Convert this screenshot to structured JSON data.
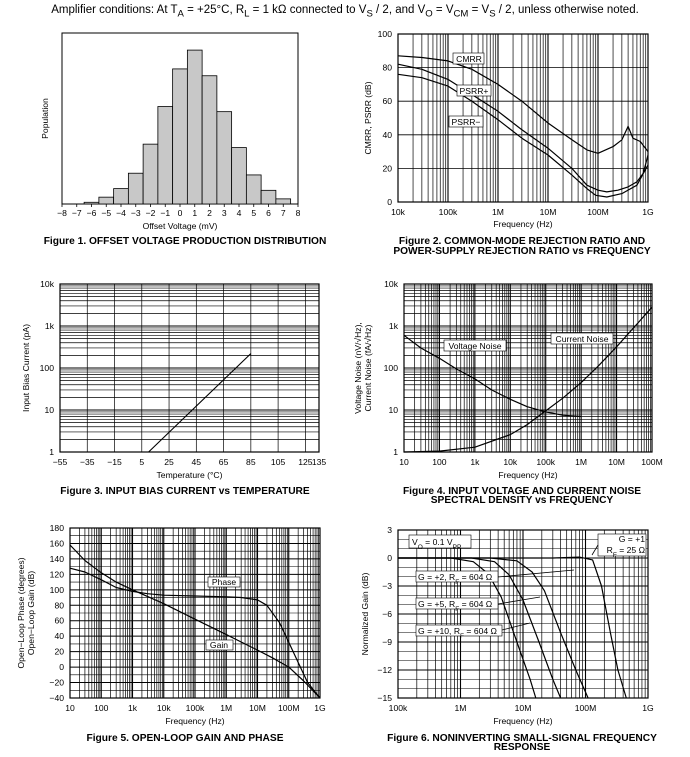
{
  "header": {
    "prefix": "Amplifier conditions: At T",
    "t_sub": "A",
    "part1": " = +25°C, R",
    "r_sub": "L",
    "part2": " = 1 kΩ connected to V",
    "vs_sub1": "S",
    "part3": " / 2, and V",
    "vo_sub": "O",
    "part4": " = V",
    "vcm_sub": "CM",
    "part5": " = V",
    "vs_sub2": "S",
    "part6": " / 2, unless otherwise noted."
  },
  "chart_data": [
    {
      "id": "fig1",
      "type": "bar",
      "title": "Figure 1. OFFSET VOLTAGE PRODUCTION DISTRIBUTION",
      "xlabel": "Offset Voltage (mV)",
      "ylabel": "Population",
      "x_ticks": [
        "−8",
        "−7",
        "−6",
        "−5",
        "−4",
        "−3",
        "−2",
        "−1",
        "0",
        "1",
        "2",
        "3",
        "4",
        "5",
        "6",
        "7",
        "8"
      ],
      "xlim": [
        -8,
        8
      ],
      "ylim": [
        0,
        100
      ],
      "bins": [
        {
          "x0": -6.5,
          "x1": -5.5,
          "value": 1
        },
        {
          "x0": -5.5,
          "x1": -4.5,
          "value": 4
        },
        {
          "x0": -4.5,
          "x1": -3.5,
          "value": 9
        },
        {
          "x0": -3.5,
          "x1": -2.5,
          "value": 18
        },
        {
          "x0": -2.5,
          "x1": -1.5,
          "value": 35
        },
        {
          "x0": -1.5,
          "x1": -0.5,
          "value": 57
        },
        {
          "x0": -0.5,
          "x1": 0.5,
          "value": 79
        },
        {
          "x0": 0.5,
          "x1": 1.5,
          "value": 90
        },
        {
          "x0": 1.5,
          "x1": 2.5,
          "value": 75
        },
        {
          "x0": 2.5,
          "x1": 3.5,
          "value": 54
        },
        {
          "x0": 3.5,
          "x1": 4.5,
          "value": 33
        },
        {
          "x0": 4.5,
          "x1": 5.5,
          "value": 17
        },
        {
          "x0": 5.5,
          "x1": 6.5,
          "value": 8
        },
        {
          "x0": 6.5,
          "x1": 7.5,
          "value": 3
        }
      ]
    },
    {
      "id": "fig2",
      "type": "line",
      "title_line1": "Figure 2. COMMON-MODE REJECTION RATIO AND",
      "title_line2": "POWER-SUPPLY REJECTION RATIO vs FREQUENCY",
      "xlabel": "Frequency (Hz)",
      "ylabel": "CMRR, PSRR (dB)",
      "x_scale": "log",
      "xlim": [
        10000,
        1000000000
      ],
      "ylim": [
        0,
        100
      ],
      "x_tick_values": [
        10000,
        100000,
        1000000,
        10000000,
        100000000,
        1000000000
      ],
      "x_tick_labels": [
        "10k",
        "100k",
        "1M",
        "10M",
        "100M",
        "1G"
      ],
      "y_ticks": [
        0,
        20,
        40,
        60,
        80,
        100
      ],
      "series": [
        {
          "name": "CMRR",
          "points": [
            [
              10000,
              87
            ],
            [
              30000,
              86
            ],
            [
              100000,
              84
            ],
            [
              300000,
              79
            ],
            [
              1000000,
              70
            ],
            [
              3000000,
              60
            ],
            [
              10000000,
              47
            ],
            [
              30000000,
              37
            ],
            [
              60000000,
              31
            ],
            [
              100000000,
              29
            ],
            [
              200000000,
              33
            ],
            [
              300000000,
              37
            ],
            [
              400000000,
              45
            ],
            [
              500000000,
              38
            ],
            [
              700000000,
              36
            ],
            [
              1000000000,
              30
            ]
          ]
        },
        {
          "name": "PSRR+",
          "points": [
            [
              10000,
              82
            ],
            [
              30000,
              79
            ],
            [
              100000,
              73
            ],
            [
              300000,
              64
            ],
            [
              1000000,
              54
            ],
            [
              3000000,
              43
            ],
            [
              10000000,
              32
            ],
            [
              30000000,
              20
            ],
            [
              60000000,
              10
            ],
            [
              100000000,
              7
            ],
            [
              150000000,
              6
            ],
            [
              250000000,
              7
            ],
            [
              400000000,
              9
            ],
            [
              600000000,
              12
            ],
            [
              800000000,
              17
            ],
            [
              1000000000,
              28
            ]
          ]
        },
        {
          "name": "PSRR−",
          "points": [
            [
              10000,
              76
            ],
            [
              30000,
              74
            ],
            [
              100000,
              69
            ],
            [
              300000,
              60
            ],
            [
              1000000,
              49
            ],
            [
              3000000,
              38
            ],
            [
              10000000,
              28
            ],
            [
              30000000,
              16
            ],
            [
              60000000,
              8
            ],
            [
              90000000,
              4
            ],
            [
              150000000,
              3
            ],
            [
              300000000,
              5
            ],
            [
              600000000,
              10
            ],
            [
              1000000000,
              22
            ]
          ]
        }
      ]
    },
    {
      "id": "fig3",
      "type": "line",
      "title": "Figure 3. INPUT BIAS CURRENT vs TEMPERATURE",
      "xlabel": "Temperature (°C)",
      "ylabel": "Input Bias Current (pA)",
      "y_scale": "log",
      "xlim": [
        -55,
        135
      ],
      "ylim": [
        1,
        10000
      ],
      "x_ticks": [
        -55,
        -35,
        -15,
        5,
        25,
        45,
        65,
        85,
        105,
        125,
        135
      ],
      "x_tick_labels": [
        "−55",
        "−35",
        "−15",
        "5",
        "25",
        "45",
        "65",
        "85",
        "105",
        "125",
        "135"
      ],
      "y_tick_values": [
        1,
        10,
        100,
        1000,
        10000
      ],
      "y_tick_labels": [
        "1",
        "10",
        "100",
        "1k",
        "10k"
      ],
      "series": [
        {
          "points": [
            [
              10,
              1
            ],
            [
              85,
              220
            ]
          ]
        }
      ]
    },
    {
      "id": "fig4",
      "type": "line",
      "title_line1": "Figure 4. INPUT VOLTAGE AND CURRENT NOISE",
      "title_line2": "SPECTRAL DENSITY vs FREQUENCY",
      "xlabel": "Frequency (Hz)",
      "ylabel_line1": "Voltage Noise (nV/√Hz),",
      "ylabel_line2": "Current Noise (fA/√Hz)",
      "x_scale": "log",
      "y_scale": "log",
      "xlim": [
        10,
        100000000
      ],
      "ylim": [
        1,
        10000
      ],
      "x_tick_values": [
        10,
        100,
        1000,
        10000,
        100000,
        1000000,
        10000000,
        100000000
      ],
      "x_tick_labels": [
        "10",
        "100",
        "1k",
        "10k",
        "100k",
        "1M",
        "10M",
        "100M"
      ],
      "y_tick_values": [
        1,
        10,
        100,
        1000,
        10000
      ],
      "y_tick_labels": [
        "1",
        "10",
        "100",
        "1k",
        "10k"
      ],
      "series": [
        {
          "name": "Voltage Noise",
          "points": [
            [
              10,
              600
            ],
            [
              30,
              300
            ],
            [
              100,
              170
            ],
            [
              300,
              95
            ],
            [
              1000,
              55
            ],
            [
              3000,
              30
            ],
            [
              10000,
              18
            ],
            [
              30000,
              12
            ],
            [
              100000,
              9
            ],
            [
              300000,
              7.5
            ],
            [
              1000000,
              7
            ]
          ]
        },
        {
          "name": "Current Noise",
          "points": [
            [
              10,
              1
            ],
            [
              100,
              1.05
            ],
            [
              1000,
              1.3
            ],
            [
              10000,
              2.6
            ],
            [
              30000,
              4.5
            ],
            [
              100000,
              9.5
            ],
            [
              300000,
              19
            ],
            [
              1000000,
              45
            ],
            [
              3000000,
              110
            ],
            [
              10000000,
              320
            ],
            [
              30000000,
              900
            ],
            [
              100000000,
              2800
            ]
          ]
        }
      ]
    },
    {
      "id": "fig5",
      "type": "line",
      "title": "Figure 5. OPEN-LOOP GAIN AND PHASE",
      "xlabel": "Frequency (Hz)",
      "ylabel_line1": "Open−Loop Phase (degrees)",
      "ylabel_line2": "Open−Loop Gain (dB)",
      "x_scale": "log",
      "xlim": [
        10,
        1000000000
      ],
      "ylim": [
        -40,
        180
      ],
      "x_tick_values": [
        10,
        100,
        1000,
        10000,
        100000,
        1000000,
        10000000,
        100000000,
        1000000000
      ],
      "x_tick_labels": [
        "10",
        "100",
        "1k",
        "10k",
        "100k",
        "1M",
        "10M",
        "100M",
        "1G"
      ],
      "y_ticks": [
        -40,
        -30,
        -20,
        -10,
        0,
        10,
        20,
        30,
        40,
        50,
        60,
        70,
        80,
        90,
        100,
        110,
        120,
        130,
        140,
        150,
        160,
        170,
        180
      ],
      "y_tick_labels": [
        "−40",
        "",
        "−20",
        "",
        "0",
        "",
        "20",
        "",
        "40",
        "",
        "60",
        "",
        "80",
        "",
        "100",
        "",
        "120",
        "",
        "140",
        "",
        "160",
        "",
        "180"
      ],
      "series": [
        {
          "name": "Gain",
          "points": [
            [
              10,
              158
            ],
            [
              30,
              138
            ],
            [
              100,
              122
            ],
            [
              300,
              110
            ],
            [
              1000,
              100
            ],
            [
              10000,
              82
            ],
            [
              100000,
              62
            ],
            [
              1000000,
              42
            ],
            [
              10000000,
              22
            ],
            [
              30000000,
              12
            ],
            [
              100000000,
              0
            ],
            [
              300000000,
              -18
            ],
            [
              1000000000,
              -40
            ]
          ]
        },
        {
          "name": "Phase",
          "points": [
            [
              10,
              128
            ],
            [
              30,
              123
            ],
            [
              100,
              113
            ],
            [
              300,
              103
            ],
            [
              1000,
              98
            ],
            [
              3000,
              95
            ],
            [
              10000,
              93
            ],
            [
              100000,
              92
            ],
            [
              1000000,
              91
            ],
            [
              3000000,
              90
            ],
            [
              10000000,
              87
            ],
            [
              20000000,
              80
            ],
            [
              50000000,
              58
            ],
            [
              100000000,
              32
            ],
            [
              200000000,
              6
            ],
            [
              400000000,
              -20
            ],
            [
              1000000000,
              -40
            ]
          ]
        }
      ]
    },
    {
      "id": "fig6",
      "type": "line",
      "title_line1": "Figure 6. NONINVERTING SMALL-SIGNAL FREQUENCY",
      "title_line2": "RESPONSE",
      "xlabel": "Frequency (Hz)",
      "ylabel": "Normalized Gain (dB)",
      "x_scale": "log",
      "xlim": [
        100000,
        1000000000
      ],
      "ylim": [
        -15,
        3
      ],
      "x_tick_values": [
        100000,
        1000000,
        10000000,
        100000000,
        1000000000
      ],
      "x_tick_labels": [
        "100k",
        "1M",
        "10M",
        "100M",
        "1G"
      ],
      "y_ticks": [
        -15,
        -12,
        -9,
        -6,
        -3,
        0,
        3
      ],
      "y_tick_labels": [
        "−15",
        "−12",
        "−9",
        "−6",
        "−3",
        "0",
        "3"
      ],
      "annotations": {
        "vo": {
          "main": "V",
          "sub": "O",
          "rest": " = 0.1 V",
          "sub2": "PP"
        },
        "g1_line1": "G = +1",
        "g1_line2_main": "R",
        "g1_line2_sub": "F",
        "g1_line2_rest": " = 25 Ω",
        "g2": {
          "main": "G = +2, R",
          "sub": "F",
          "rest": " = 604 Ω"
        },
        "g5": {
          "main": "G = +5, R",
          "sub": "F",
          "rest": " = 604 Ω"
        },
        "g10": {
          "main": "G = +10, R",
          "sub": "F",
          "rest": " = 604 Ω"
        }
      },
      "series": [
        {
          "name": "G = +1",
          "points": [
            [
              100000,
              0
            ],
            [
              30000000,
              0
            ],
            [
              80000000,
              0.1
            ],
            [
              130000000,
              -0.2
            ],
            [
              180000000,
              -3
            ],
            [
              250000000,
              -8
            ],
            [
              330000000,
              -12
            ],
            [
              450000000,
              -15
            ]
          ]
        },
        {
          "name": "G = +2",
          "points": [
            [
              100000,
              0
            ],
            [
              3000000,
              0
            ],
            [
              8000000,
              -0.3
            ],
            [
              14000000,
              -1.5
            ],
            [
              22000000,
              -3.5
            ],
            [
              40000000,
              -8
            ],
            [
              70000000,
              -12
            ],
            [
              110000000,
              -15
            ]
          ]
        },
        {
          "name": "G = +5",
          "points": [
            [
              100000,
              0
            ],
            [
              1500000,
              0
            ],
            [
              3500000,
              -0.4
            ],
            [
              6000000,
              -1.8
            ],
            [
              10000000,
              -4.5
            ],
            [
              18000000,
              -9
            ],
            [
              30000000,
              -13
            ],
            [
              40000000,
              -15
            ]
          ]
        },
        {
          "name": "G = +10",
          "points": [
            [
              100000,
              0
            ],
            [
              700000,
              0
            ],
            [
              1600000,
              -0.4
            ],
            [
              2800000,
              -1.7
            ],
            [
              4500000,
              -4.2
            ],
            [
              8000000,
              -9
            ],
            [
              13000000,
              -13
            ],
            [
              16000000,
              -15
            ]
          ]
        }
      ]
    }
  ]
}
